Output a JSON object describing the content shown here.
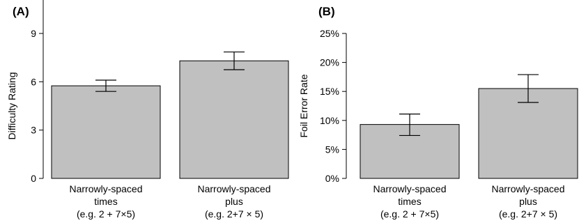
{
  "chart_data": [
    {
      "type": "bar",
      "panel_label": "(A)",
      "ylabel": "Difficulty Rating",
      "ylim": [
        0,
        9
      ],
      "yticks": [
        "0",
        "3",
        "6",
        "9"
      ],
      "categories": [
        [
          "Narrowly-spaced",
          "times",
          "(e.g. 2 + 7×5)"
        ],
        [
          "Narrowly-spaced",
          "plus",
          "(e.g. 2+7 × 5)"
        ]
      ],
      "values": [
        5.75,
        7.3
      ],
      "error_low": [
        5.4,
        6.75
      ],
      "error_high": [
        6.1,
        7.85
      ],
      "bar_color": "#c0c0c0"
    },
    {
      "type": "bar",
      "panel_label": "(B)",
      "ylabel": "Foil Error Rate",
      "ylim": [
        0,
        25
      ],
      "yticks": [
        "0%",
        "5%",
        "10%",
        "15%",
        "20%",
        "25%"
      ],
      "categories": [
        [
          "Narrowly-spaced",
          "times",
          "(e.g. 2 + 7×5)"
        ],
        [
          "Narrowly-spaced",
          "plus",
          "(e.g. 2+7 × 5)"
        ]
      ],
      "values": [
        9.3,
        15.5
      ],
      "error_low": [
        7.4,
        13.1
      ],
      "error_high": [
        11.1,
        17.9
      ],
      "bar_color": "#c0c0c0"
    }
  ]
}
